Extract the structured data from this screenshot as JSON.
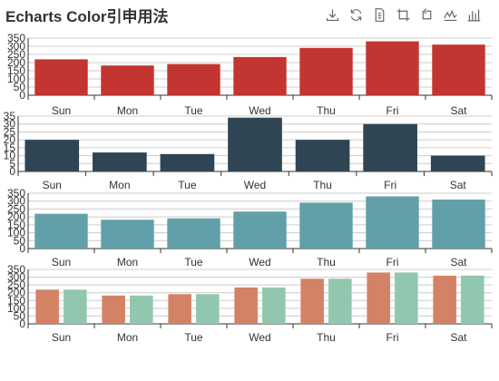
{
  "title": "Echarts Color引申用法",
  "toolbox": [
    {
      "name": "save-as-image-icon",
      "icon": "download"
    },
    {
      "name": "restore-icon",
      "icon": "refresh"
    },
    {
      "name": "data-view-icon",
      "icon": "doc"
    },
    {
      "name": "zoom-icon",
      "icon": "crop"
    },
    {
      "name": "zoom-reset-icon",
      "icon": "crop-back"
    },
    {
      "name": "line-chart-icon",
      "icon": "line"
    },
    {
      "name": "bar-chart-icon",
      "icon": "bar"
    }
  ],
  "colors": {
    "red": "#c23531",
    "navy": "#2f4554",
    "teal": "#61a0a8",
    "orange": "#d48265",
    "mint": "#91c7ae"
  },
  "chart_data": [
    {
      "type": "bar",
      "categories": [
        "Sun",
        "Mon",
        "Tue",
        "Wed",
        "Thu",
        "Fri",
        "Sat"
      ],
      "series": [
        {
          "color": "#c23531",
          "values": [
            220,
            182,
            191,
            234,
            290,
            330,
            310
          ]
        }
      ],
      "yticks": [
        0,
        50,
        100,
        150,
        200,
        250,
        300,
        350
      ],
      "ylim": [
        0,
        350
      ],
      "grid": true
    },
    {
      "type": "bar",
      "categories": [
        "Sun",
        "Mon",
        "Tue",
        "Wed",
        "Thu",
        "Fri",
        "Sat"
      ],
      "series": [
        {
          "color": "#2f4554",
          "values": [
            20,
            12,
            11,
            34,
            20,
            30,
            10
          ]
        }
      ],
      "yticks": [
        0,
        5,
        10,
        15,
        20,
        25,
        30,
        35
      ],
      "ylim": [
        0,
        35
      ],
      "grid": true
    },
    {
      "type": "bar",
      "categories": [
        "Sun",
        "Mon",
        "Tue",
        "Wed",
        "Thu",
        "Fri",
        "Sat"
      ],
      "series": [
        {
          "color": "#61a0a8",
          "values": [
            220,
            182,
            191,
            234,
            290,
            330,
            310
          ]
        }
      ],
      "yticks": [
        0,
        50,
        100,
        150,
        200,
        250,
        300,
        350
      ],
      "ylim": [
        0,
        350
      ],
      "grid": true
    },
    {
      "type": "bar",
      "categories": [
        "Sun",
        "Mon",
        "Tue",
        "Wed",
        "Thu",
        "Fri",
        "Sat"
      ],
      "series": [
        {
          "color": "#d48265",
          "values": [
            220,
            182,
            191,
            234,
            290,
            330,
            310
          ]
        },
        {
          "color": "#91c7ae",
          "values": [
            220,
            182,
            191,
            234,
            290,
            330,
            310
          ]
        }
      ],
      "yticks": [
        0,
        50,
        100,
        150,
        200,
        250,
        300,
        350
      ],
      "ylim": [
        0,
        350
      ],
      "grid": true
    }
  ]
}
